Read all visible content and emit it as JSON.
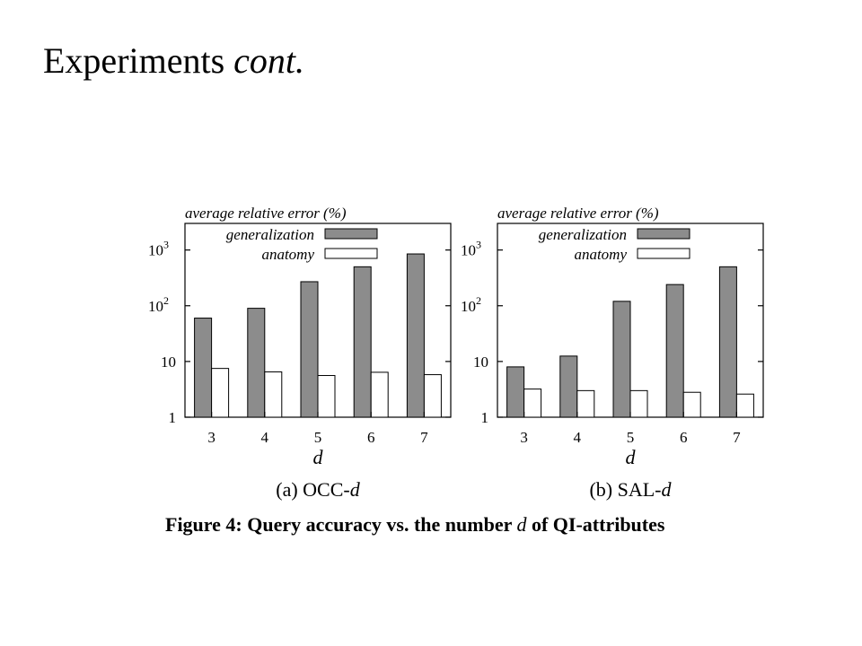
{
  "slide": {
    "title_main": "Experiments",
    "title_italic": "cont."
  },
  "figure": {
    "caption_prefix": "Figure 4: Query accuracy vs. the number",
    "caption_var": "d",
    "caption_suffix": "of QI-attributes"
  },
  "chart_data": [
    {
      "type": "bar",
      "subtitle": "(a) OCC-d",
      "ylabel": "average relative error (%)",
      "xlabel": "d",
      "yscale": "log",
      "ylim": [
        1,
        3000
      ],
      "yticks": [
        1,
        10,
        100,
        1000
      ],
      "ytick_labels": [
        "1",
        "10",
        "10^2",
        "10^3"
      ],
      "categories": [
        "3",
        "4",
        "5",
        "6",
        "7"
      ],
      "series": [
        {
          "name": "generalization",
          "color": "#8c8c8c",
          "values": [
            60,
            90,
            270,
            500,
            850
          ]
        },
        {
          "name": "anatomy",
          "color": "#ffffff",
          "values": [
            7.5,
            6.5,
            5.6,
            6.4,
            5.8
          ]
        }
      ],
      "legend": "top-right",
      "grid": false
    },
    {
      "type": "bar",
      "subtitle": "(b) SAL-d",
      "ylabel": "average relative error (%)",
      "xlabel": "d",
      "yscale": "log",
      "ylim": [
        1,
        3000
      ],
      "yticks": [
        1,
        10,
        100,
        1000
      ],
      "ytick_labels": [
        "1",
        "10",
        "10^2",
        "10^3"
      ],
      "categories": [
        "3",
        "4",
        "5",
        "6",
        "7"
      ],
      "series": [
        {
          "name": "generalization",
          "color": "#8c8c8c",
          "values": [
            8,
            12.5,
            120,
            240,
            500
          ]
        },
        {
          "name": "anatomy",
          "color": "#ffffff",
          "values": [
            3.2,
            3.0,
            3.0,
            2.8,
            2.6
          ]
        }
      ],
      "legend": "top-right",
      "grid": false
    }
  ]
}
